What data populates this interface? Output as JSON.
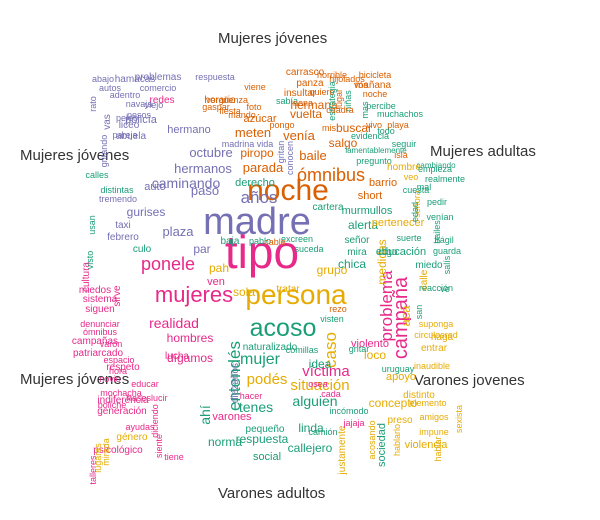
{
  "labels": {
    "top": "Mujeres jóvenes",
    "upper_left": "Mujeres jóvenes",
    "upper_right": "Mujeres adultas",
    "lower_left": "Mujeres jóvenes",
    "lower_right": "Varones jovenes",
    "bottom": "Varones adultos"
  },
  "colors": {
    "purple": "#7570b3",
    "green": "#66a61e",
    "orange": "#d95f02",
    "teal": "#1b9e77",
    "pink": "#e7298a",
    "gold": "#e6ab02",
    "brown": "#a6761d",
    "gray": "#666666"
  },
  "words": [
    {
      "t": "tipo",
      "c": "pink",
      "s": 46
    },
    {
      "t": "madre",
      "c": "purple",
      "s": 38
    },
    {
      "t": "noche",
      "c": "orange",
      "s": 30
    },
    {
      "t": "persona",
      "c": "gold",
      "s": 28
    },
    {
      "t": "acoso",
      "c": "teal",
      "s": 25
    },
    {
      "t": "mujeres",
      "c": "pink",
      "s": 22
    },
    {
      "t": "campaña",
      "c": "pink",
      "s": 20
    },
    {
      "t": "ómnibus",
      "c": "orange",
      "s": 18
    },
    {
      "t": "ponele",
      "c": "pink",
      "s": 18
    },
    {
      "t": "entendés",
      "c": "teal",
      "s": 17
    },
    {
      "t": "mujer",
      "c": "teal",
      "s": 16
    },
    {
      "t": "años",
      "c": "purple",
      "s": 17
    },
    {
      "t": "problema",
      "c": "pink",
      "s": 17
    },
    {
      "t": "caso",
      "c": "gold",
      "s": 17
    },
    {
      "t": "víctima",
      "c": "pink",
      "s": 15
    },
    {
      "t": "situación",
      "c": "gold",
      "s": 15
    },
    {
      "t": "podés",
      "c": "gold",
      "s": 15
    },
    {
      "t": "tenes",
      "c": "teal",
      "s": 14
    },
    {
      "t": "caminando",
      "c": "purple",
      "s": 14
    },
    {
      "t": "realidad",
      "c": "pink",
      "s": 14
    },
    {
      "t": "octubre",
      "c": "purple",
      "s": 13
    },
    {
      "t": "hermanos",
      "c": "purple",
      "s": 13
    },
    {
      "t": "plaza",
      "c": "purple",
      "s": 13
    },
    {
      "t": "gurises",
      "c": "purple",
      "s": 12
    },
    {
      "t": "alguien",
      "c": "teal",
      "s": 14
    },
    {
      "t": "respuesta",
      "c": "teal",
      "s": 12
    },
    {
      "t": "parada",
      "c": "orange",
      "s": 13
    },
    {
      "t": "baile",
      "c": "orange",
      "s": 13
    },
    {
      "t": "piropo",
      "c": "orange",
      "s": 12
    },
    {
      "t": "meten",
      "c": "orange",
      "s": 13
    },
    {
      "t": "hermana",
      "c": "orange",
      "s": 12
    },
    {
      "t": "venía",
      "c": "orange",
      "s": 13
    },
    {
      "t": "vuelta",
      "c": "orange",
      "s": 12
    },
    {
      "t": "buscar",
      "c": "orange",
      "s": 12
    },
    {
      "t": "salgo",
      "c": "orange",
      "s": 12
    },
    {
      "t": "azúcar",
      "c": "orange",
      "s": 11
    },
    {
      "t": "hermano",
      "c": "purple",
      "s": 11
    },
    {
      "t": "grupo",
      "c": "gold",
      "s": 12
    },
    {
      "t": "chica",
      "c": "teal",
      "s": 12
    },
    {
      "t": "alerta",
      "c": "teal",
      "s": 12
    },
    {
      "t": "idea",
      "c": "teal",
      "s": 12
    },
    {
      "t": "dígamos",
      "c": "pink",
      "s": 12
    },
    {
      "t": "hombres",
      "c": "pink",
      "s": 12
    },
    {
      "t": "violento",
      "c": "pink",
      "s": 11
    },
    {
      "t": "loco",
      "c": "gold",
      "s": 12
    },
    {
      "t": "pah",
      "c": "gold",
      "s": 12
    },
    {
      "t": "ven",
      "c": "pink",
      "s": 11
    },
    {
      "t": "varones",
      "c": "pink",
      "s": 11
    },
    {
      "t": "linda",
      "c": "teal",
      "s": 12
    },
    {
      "t": "callejero",
      "c": "teal",
      "s": 12
    },
    {
      "t": "pequeño",
      "c": "teal",
      "s": 10
    },
    {
      "t": "naturalizado",
      "c": "teal",
      "s": 10
    },
    {
      "t": "derecho",
      "c": "teal",
      "s": 11
    },
    {
      "t": "sola",
      "c": "gold",
      "s": 12
    },
    {
      "t": "tratar",
      "c": "gold",
      "s": 10
    },
    {
      "t": "calle",
      "c": "gold",
      "s": 10
    },
    {
      "t": "medidas",
      "c": "gold",
      "s": 12
    },
    {
      "t": "acá",
      "c": "gold",
      "s": 13
    },
    {
      "t": "concepto",
      "c": "gold",
      "s": 12
    },
    {
      "t": "pertenecer",
      "c": "gold",
      "s": 11
    },
    {
      "t": "educación",
      "c": "teal",
      "s": 11
    },
    {
      "t": "señor",
      "c": "teal",
      "s": 10
    },
    {
      "t": "murmullos",
      "c": "teal",
      "s": 11
    },
    {
      "t": "cartera",
      "c": "teal",
      "s": 10
    },
    {
      "t": "mira",
      "c": "teal",
      "s": 10
    },
    {
      "t": "digo",
      "c": "teal",
      "s": 10
    },
    {
      "t": "culo",
      "c": "teal",
      "s": 10
    },
    {
      "t": "par",
      "c": "purple",
      "s": 12
    },
    {
      "t": "pasó",
      "c": "purple",
      "s": 13
    },
    {
      "t": "auto",
      "c": "purple",
      "s": 11
    },
    {
      "t": "taxi",
      "c": "purple",
      "s": 10
    },
    {
      "t": "febrero",
      "c": "purple",
      "s": 10
    },
    {
      "t": "diezaños",
      "c": "purple",
      "s": 10
    },
    {
      "t": "ahí",
      "c": "teal",
      "s": 14
    },
    {
      "t": "norma",
      "c": "teal",
      "s": 12
    },
    {
      "t": "social",
      "c": "teal",
      "s": 11
    },
    {
      "t": "comillas",
      "c": "teal",
      "s": 9
    },
    {
      "t": "miedo",
      "c": "teal",
      "s": 10
    },
    {
      "t": "entrar",
      "c": "gold",
      "s": 10
    },
    {
      "t": "haga",
      "c": "gold",
      "s": 10
    },
    {
      "t": "distinto",
      "c": "gold",
      "s": 10
    },
    {
      "t": "preso",
      "c": "gold",
      "s": 10
    },
    {
      "t": "violencia",
      "c": "gold",
      "s": 11
    },
    {
      "t": "justamente",
      "c": "gold",
      "s": 10
    },
    {
      "t": "sociedad",
      "c": "teal",
      "s": 11
    },
    {
      "t": "género",
      "c": "gold",
      "s": 10
    },
    {
      "t": "psicológico",
      "c": "pink",
      "s": 10
    },
    {
      "t": "indiferencia",
      "c": "pink",
      "s": 10
    },
    {
      "t": "generación",
      "c": "pink",
      "s": 10
    },
    {
      "t": "campañas",
      "c": "pink",
      "s": 10
    },
    {
      "t": "patriarcado",
      "c": "pink",
      "s": 10
    },
    {
      "t": "denunciar",
      "c": "pink",
      "s": 9
    },
    {
      "t": "siguen",
      "c": "pink",
      "s": 10
    },
    {
      "t": "sistema",
      "c": "pink",
      "s": 10
    },
    {
      "t": "miedos",
      "c": "pink",
      "s": 10
    },
    {
      "t": "sirve",
      "c": "pink",
      "s": 10
    },
    {
      "t": "cultura",
      "c": "pink",
      "s": 10
    },
    {
      "t": "respeto",
      "c": "pink",
      "s": 10
    },
    {
      "t": "lucha",
      "c": "pink",
      "s": 10
    },
    {
      "t": "redes",
      "c": "pink",
      "s": 10
    },
    {
      "t": "policía",
      "c": "purple",
      "s": 11
    },
    {
      "t": "liceo",
      "c": "purple",
      "s": 10
    },
    {
      "t": "problemas",
      "c": "purple",
      "s": 10
    },
    {
      "t": "hamacas",
      "c": "purple",
      "s": 10
    },
    {
      "t": "abajo",
      "c": "purple",
      "s": 9
    },
    {
      "t": "autos",
      "c": "purple",
      "s": 9
    },
    {
      "t": "adentro",
      "c": "purple",
      "s": 9
    },
    {
      "t": "comercio",
      "c": "purple",
      "s": 9
    },
    {
      "t": "navaja",
      "c": "purple",
      "s": 9
    },
    {
      "t": "pareja",
      "c": "purple",
      "s": 9
    },
    {
      "t": "respuesta",
      "c": "purple",
      "s": 9
    },
    {
      "t": "horario",
      "c": "orange",
      "s": 10
    },
    {
      "t": "insultar",
      "c": "orange",
      "s": 10
    },
    {
      "t": "panza",
      "c": "orange",
      "s": 10
    },
    {
      "t": "bicicleta",
      "c": "orange",
      "s": 9
    },
    {
      "t": "mañana",
      "c": "orange",
      "s": 10
    },
    {
      "t": "carrasco",
      "c": "orange",
      "s": 10
    },
    {
      "t": "hijolados",
      "c": "orange",
      "s": 9
    },
    {
      "t": "viene",
      "c": "orange",
      "s": 9
    },
    {
      "t": "vergüenza",
      "c": "orange",
      "s": 9
    },
    {
      "t": "gaspar",
      "c": "orange",
      "s": 9
    },
    {
      "t": "pongo",
      "c": "orange",
      "s": 9
    },
    {
      "t": "playa",
      "c": "orange",
      "s": 9
    },
    {
      "t": "muchachos",
      "c": "teal",
      "s": 9
    },
    {
      "t": "percibe",
      "c": "teal",
      "s": 9
    },
    {
      "t": "lamentablemente",
      "c": "teal",
      "s": 8
    },
    {
      "t": "evidencia",
      "c": "teal",
      "s": 9
    },
    {
      "t": "pregunto",
      "c": "teal",
      "s": 9
    },
    {
      "t": "seguir",
      "c": "teal",
      "s": 9
    },
    {
      "t": "cambiando",
      "c": "teal",
      "s": 8
    },
    {
      "t": "empieza",
      "c": "teal",
      "s": 9
    },
    {
      "t": "realmente",
      "c": "teal",
      "s": 9
    },
    {
      "t": "venían",
      "c": "teal",
      "s": 9
    },
    {
      "t": "frágil",
      "c": "teal",
      "s": 9
    },
    {
      "t": "guarda",
      "c": "teal",
      "s": 9
    },
    {
      "t": "pedir",
      "c": "teal",
      "s": 9
    },
    {
      "t": "reacción",
      "c": "teal",
      "s": 9
    },
    {
      "t": "suponga",
      "c": "gold",
      "s": 9
    },
    {
      "t": "circulosred",
      "c": "gold",
      "s": 9
    },
    {
      "t": "inaudible",
      "c": "gold",
      "s": 9
    },
    {
      "t": "amigos",
      "c": "gold",
      "s": 9
    },
    {
      "t": "impune",
      "c": "gold",
      "s": 9
    },
    {
      "t": "elemento",
      "c": "gold",
      "s": 9
    },
    {
      "t": "sexista",
      "c": "gold",
      "s": 9
    },
    {
      "t": "hablar",
      "c": "gold",
      "s": 9
    },
    {
      "t": "acosando",
      "c": "gold",
      "s": 9
    },
    {
      "t": "hablarlo",
      "c": "gold",
      "s": 9
    },
    {
      "t": "lugares",
      "c": "gold",
      "s": 9
    },
    {
      "t": "mirada",
      "c": "gold",
      "s": 9
    },
    {
      "t": "talleres",
      "c": "pink",
      "s": 9
    },
    {
      "t": "ayudas",
      "c": "pink",
      "s": 9
    },
    {
      "t": "boliche",
      "c": "pink",
      "s": 9
    },
    {
      "t": "mochacha",
      "c": "pink",
      "s": 9
    },
    {
      "t": "novio",
      "c": "pink",
      "s": 9
    },
    {
      "t": "espacio",
      "c": "pink",
      "s": 9
    },
    {
      "t": "hora",
      "c": "pink",
      "s": 9
    },
    {
      "t": "varón",
      "c": "pink",
      "s": 9
    },
    {
      "t": "ómnibus",
      "c": "pink",
      "s": 9
    },
    {
      "t": "educar",
      "c": "pink",
      "s": 9
    },
    {
      "t": "fraseslucir",
      "c": "pink",
      "s": 9
    },
    {
      "t": "diciendo",
      "c": "pink",
      "s": 9
    },
    {
      "t": "siente",
      "c": "pink",
      "s": 9
    },
    {
      "t": "tiene",
      "c": "pink",
      "s": 9
    },
    {
      "t": "osea",
      "c": "pink",
      "s": 9
    },
    {
      "t": "hacer",
      "c": "pink",
      "s": 9
    },
    {
      "t": "cada",
      "c": "pink",
      "s": 9
    },
    {
      "t": "jajaja",
      "c": "pink",
      "s": 9
    },
    {
      "t": "incómodo",
      "c": "teal",
      "s": 9
    },
    {
      "t": "camión",
      "c": "teal",
      "s": 9
    },
    {
      "t": "gritar",
      "c": "teal",
      "s": 9
    },
    {
      "t": "visten",
      "c": "teal",
      "s": 9
    },
    {
      "t": "usan",
      "c": "teal",
      "s": 9
    },
    {
      "t": "visto",
      "c": "teal",
      "s": 9
    },
    {
      "t": "calles",
      "c": "teal",
      "s": 9
    },
    {
      "t": "distintas",
      "c": "teal",
      "s": 9
    },
    {
      "t": "tremendo",
      "c": "purple",
      "s": 9
    },
    {
      "t": "gritando",
      "c": "purple",
      "s": 9
    },
    {
      "t": "abuela",
      "c": "purple",
      "s": 10
    },
    {
      "t": "vas",
      "c": "purple",
      "s": 10
    },
    {
      "t": "rato",
      "c": "purple",
      "s": 9
    },
    {
      "t": "peleo",
      "c": "purple",
      "s": 9
    },
    {
      "t": "pesos",
      "c": "purple",
      "s": 9
    },
    {
      "t": "viejo",
      "c": "purple",
      "s": 9
    },
    {
      "t": "madrina",
      "c": "purple",
      "s": 9
    },
    {
      "t": "vida",
      "c": "purple",
      "s": 9
    },
    {
      "t": "gritan",
      "c": "purple",
      "s": 9
    },
    {
      "t": "conocen",
      "c": "purple",
      "s": 9
    },
    {
      "t": "vivo",
      "c": "orange",
      "s": 9
    },
    {
      "t": "isla",
      "c": "orange",
      "s": 9
    },
    {
      "t": "short",
      "c": "orange",
      "s": 11
    },
    {
      "t": "barrio",
      "c": "orange",
      "s": 11
    },
    {
      "t": "señora",
      "c": "gold",
      "s": 9
    },
    {
      "t": "suerte",
      "c": "teal",
      "s": 9
    },
    {
      "t": "baja",
      "c": "teal",
      "s": 10
    },
    {
      "t": "pablo",
      "c": "teal",
      "s": 9
    },
    {
      "t": "excreen",
      "c": "teal",
      "s": 9
    },
    {
      "t": "suceda",
      "c": "teal",
      "s": 9
    },
    {
      "t": "bailes",
      "c": "teal",
      "s": 9
    },
    {
      "t": "salís",
      "c": "teal",
      "s": 9
    },
    {
      "t": "san",
      "c": "teal",
      "s": 9
    },
    {
      "t": "ve",
      "c": "teal",
      "s": 9
    },
    {
      "t": "uruguay",
      "c": "teal",
      "s": 9
    },
    {
      "t": "apoyo",
      "c": "gold",
      "s": 11
    },
    {
      "t": "hombre",
      "c": "gold",
      "s": 10
    },
    {
      "t": "veo",
      "c": "gold",
      "s": 9
    },
    {
      "t": "edad",
      "c": "teal",
      "s": 9
    },
    {
      "t": "mal",
      "c": "teal",
      "s": 9
    },
    {
      "t": "cuesta",
      "c": "teal",
      "s": 9
    },
    {
      "t": "todo",
      "c": "teal",
      "s": 9
    },
    {
      "t": "estrategia",
      "c": "teal",
      "s": 9
    },
    {
      "t": "niñas",
      "c": "teal",
      "s": 9
    },
    {
      "t": "mas",
      "c": "teal",
      "s": 9
    },
    {
      "t": "sabía",
      "c": "teal",
      "s": 9
    },
    {
      "t": "nena",
      "c": "orange",
      "s": 9
    },
    {
      "t": "quiero",
      "c": "orange",
      "s": 9
    },
    {
      "t": "horrible",
      "c": "orange",
      "s": 9
    },
    {
      "t": "lugar",
      "c": "orange",
      "s": 9
    },
    {
      "t": "fiesta",
      "c": "orange",
      "s": 9
    },
    {
      "t": "mando",
      "c": "orange",
      "s": 9
    },
    {
      "t": "foto",
      "c": "orange",
      "s": 9
    },
    {
      "t": "cuadra",
      "c": "orange",
      "s": 9
    },
    {
      "t": "noche",
      "c": "orange",
      "s": 9
    },
    {
      "t": "mis",
      "c": "orange",
      "s": 9
    },
    {
      "t": "vos",
      "c": "orange",
      "s": 9
    },
    {
      "t": "rezo",
      "c": "orange",
      "s": 9
    },
    {
      "t": "cable",
      "c": "orange",
      "s": 9
    }
  ]
}
